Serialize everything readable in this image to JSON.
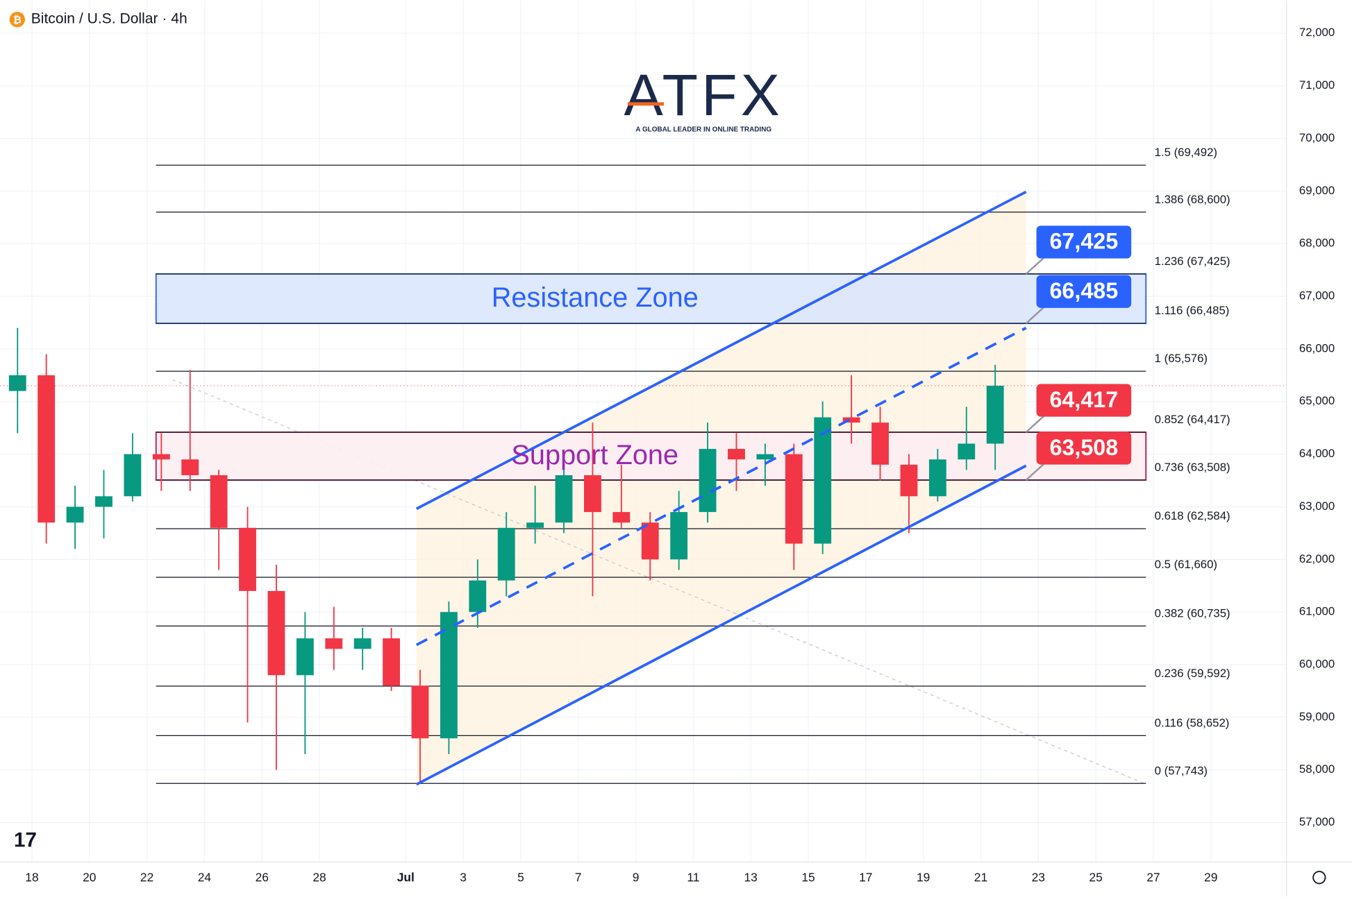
{
  "chart_data": {
    "type": "candlestick",
    "title": "Bitcoin / U.S. Dollar · 4h",
    "logo": {
      "text": "ATFX",
      "tagline": "A GLOBAL LEADER IN ONLINE TRADING"
    },
    "x": [
      17,
      18,
      19,
      20,
      21,
      22,
      23,
      24,
      25,
      26,
      27,
      28,
      29,
      30,
      31,
      32,
      33,
      34,
      35,
      36,
      37,
      38,
      39,
      40,
      41,
      42,
      43,
      44,
      45,
      46,
      47,
      48,
      49,
      50,
      51
    ],
    "open": [
      65200,
      65500,
      62700,
      63000,
      63200,
      64000,
      63900,
      63600,
      62600,
      61400,
      59800,
      60500,
      60300,
      60500,
      59600,
      58600,
      61000,
      61600,
      62600,
      62700,
      63600,
      62900,
      62700,
      62000,
      62900,
      64100,
      63900,
      64000,
      62300,
      64700,
      64600,
      63800,
      63200,
      63900,
      64200
    ],
    "high": [
      66400,
      65900,
      63400,
      63700,
      64400,
      64400,
      65600,
      63700,
      63000,
      61900,
      61000,
      61100,
      60700,
      60700,
      59900,
      61200,
      62000,
      62900,
      63400,
      63900,
      64600,
      63800,
      62900,
      63300,
      64600,
      64400,
      64200,
      64200,
      65000,
      65500,
      64900,
      64000,
      64100,
      64900,
      65700
    ],
    "low": [
      64400,
      62300,
      62200,
      62400,
      63100,
      63300,
      63300,
      61800,
      58900,
      58000,
      58300,
      59900,
      59900,
      59500,
      57743,
      58300,
      60700,
      61300,
      62300,
      62500,
      61300,
      62600,
      61600,
      61800,
      62700,
      63300,
      63400,
      61800,
      62100,
      64200,
      63500,
      62500,
      63100,
      63700,
      63700
    ],
    "close": [
      65500,
      62700,
      63000,
      63200,
      64000,
      63900,
      63600,
      62600,
      61400,
      59800,
      60500,
      60300,
      60500,
      59600,
      58600,
      61000,
      61600,
      62600,
      62700,
      63600,
      62900,
      62700,
      62000,
      62900,
      64100,
      63900,
      64000,
      62300,
      64700,
      64600,
      63800,
      63200,
      63900,
      64200,
      65300
    ],
    "up_color": "#089981",
    "down_color": "#f23645",
    "xlim": [
      16.89,
      61.63
    ],
    "xticks": [
      18,
      20,
      22,
      24,
      26,
      28,
      {
        "value": 31,
        "label": "Jul"
      },
      {
        "value": 33,
        "label": "3"
      },
      {
        "value": 35,
        "label": "5"
      },
      {
        "value": 37,
        "label": "7"
      },
      {
        "value": 39,
        "label": "9"
      },
      {
        "value": 41,
        "label": "11"
      },
      {
        "value": 43,
        "label": "13"
      },
      {
        "value": 45,
        "label": "15"
      },
      {
        "value": 47,
        "label": "17"
      },
      {
        "value": 49,
        "label": "19"
      },
      {
        "value": 51,
        "label": "21"
      },
      {
        "value": 53,
        "label": "23"
      },
      {
        "value": 55,
        "label": "25"
      },
      {
        "value": 57,
        "label": "27"
      },
      {
        "value": 59,
        "label": "29"
      }
    ],
    "ylim": [
      56250,
      72620
    ],
    "yticks": [
      {
        "value": 57000,
        "label": "57,000"
      },
      {
        "value": 58000,
        "label": "58,000"
      },
      {
        "value": 59000,
        "label": "59,000"
      },
      {
        "value": 60000,
        "label": "60,000"
      },
      {
        "value": 61000,
        "label": "61,000"
      },
      {
        "value": 62000,
        "label": "62,000"
      },
      {
        "value": 63000,
        "label": "63,000"
      },
      {
        "value": 64000,
        "label": "64,000"
      },
      {
        "value": 65000,
        "label": "65,000"
      },
      {
        "value": 66000,
        "label": "66,000"
      },
      {
        "value": 67000,
        "label": "67,000"
      },
      {
        "value": 68000,
        "label": "68,000"
      },
      {
        "value": 69000,
        "label": "69,000"
      },
      {
        "value": 70000,
        "label": "70,000"
      },
      {
        "value": 71000,
        "label": "71,000"
      },
      {
        "value": 72000,
        "label": "72,000"
      }
    ],
    "grid": true,
    "fib_levels": [
      {
        "value": 69492,
        "label": "1.5 (69,492)"
      },
      {
        "value": 68600,
        "label": "1.386 (68,600)"
      },
      {
        "value": 67425,
        "label": "1.236 (67,425)"
      },
      {
        "value": 66485,
        "label": "1.116 (66,485)"
      },
      {
        "value": 65576,
        "label": "1 (65,576)"
      },
      {
        "value": 64417,
        "label": "0.852 (64,417)"
      },
      {
        "value": 63508,
        "label": "0.736 (63,508)"
      },
      {
        "value": 62584,
        "label": "0.618 (62,584)"
      },
      {
        "value": 61660,
        "label": "0.5 (61,660)"
      },
      {
        "value": 60735,
        "label": "0.382 (60,735)"
      },
      {
        "value": 59592,
        "label": "0.236 (59,592)"
      },
      {
        "value": 58652,
        "label": "0.116 (58,652)"
      },
      {
        "value": 57743,
        "label": "0 (57,743)"
      }
    ],
    "zones": [
      {
        "label": "Resistance Zone",
        "range": [
          66485,
          67425
        ],
        "color": "#2962ff",
        "fill": "#dbe7fd",
        "text_color": "#2962ff"
      },
      {
        "label": "Support Zone",
        "range": [
          63508,
          64417
        ],
        "color": "#c2185b",
        "fill": "#fdeef2",
        "text_color": "#9c27b0"
      }
    ],
    "price_labels": [
      {
        "value": 67425,
        "label": "67,425",
        "color": "#2962ff"
      },
      {
        "value": 66485,
        "label": "66,485",
        "color": "#2962ff"
      },
      {
        "value": 64417,
        "label": "64,417",
        "color": "#f23645"
      },
      {
        "value": 63508,
        "label": "63,508",
        "color": "#f23645"
      }
    ]
  }
}
